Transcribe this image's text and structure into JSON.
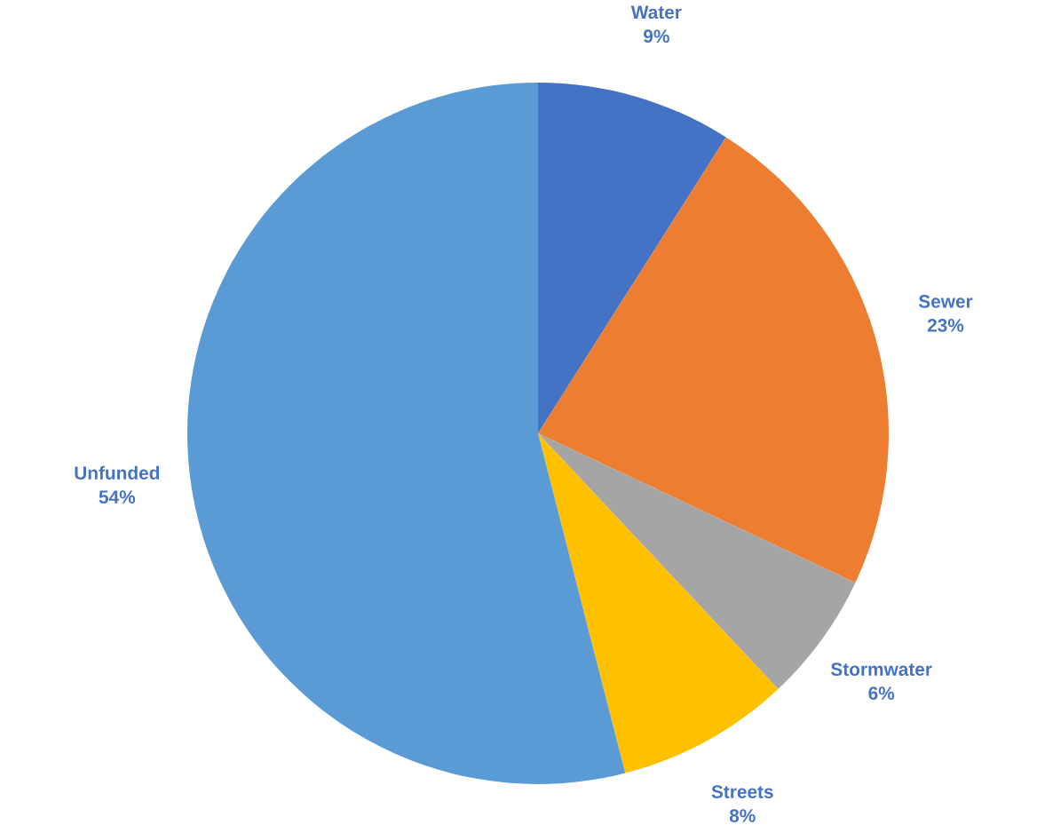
{
  "chart_data": {
    "type": "pie",
    "categories": [
      "Water",
      "Sewer",
      "Stormwater",
      "Streets",
      "Unfunded"
    ],
    "values": [
      9,
      23,
      6,
      8,
      54
    ],
    "value_labels": [
      "9%",
      "23%",
      "6%",
      "8%",
      "54%"
    ],
    "colors": [
      "#4472c4",
      "#ed7d31",
      "#a5a5a5",
      "#ffc000",
      "#5b9bd5"
    ],
    "legend": false
  }
}
